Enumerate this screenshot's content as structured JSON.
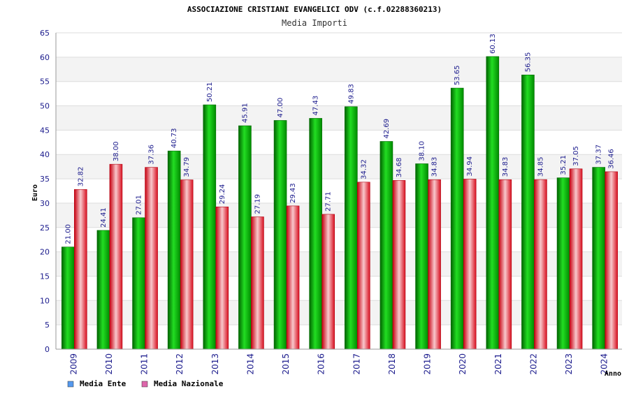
{
  "chart_data": {
    "type": "bar",
    "title": "ASSOCIAZIONE CRISTIANI EVANGELICI ODV (c.f.02288360213)",
    "subtitle": "Media Importi",
    "xlabel": "Anno",
    "ylabel": "Euro",
    "ylim": [
      0,
      65
    ],
    "ytick_step": 5,
    "grid": true,
    "legend_position": "bottom-left",
    "categories": [
      "2009",
      "2010",
      "2011",
      "2012",
      "2013",
      "2014",
      "2015",
      "2016",
      "2017",
      "2018",
      "2019",
      "2020",
      "2021",
      "2022",
      "2023",
      "2024"
    ],
    "series": [
      {
        "name": "Media Ente",
        "color": "#00b400",
        "legend_color": "#5599ee",
        "values": [
          21.0,
          24.41,
          27.01,
          40.73,
          50.21,
          45.91,
          47.0,
          47.43,
          49.83,
          42.69,
          38.1,
          53.65,
          60.13,
          56.35,
          35.21,
          37.37
        ],
        "labels": [
          "21.00",
          "24.41",
          "27.01",
          "40.73",
          "50.21",
          "45.91",
          "47.00",
          "47.43",
          "49.83",
          "42.69",
          "38.10",
          "53.65",
          "60.13",
          "56.35",
          "35.21",
          "37.37"
        ]
      },
      {
        "name": "Media Nazionale",
        "color": "#e8202a",
        "legend_color": "#dd66aa",
        "values": [
          32.82,
          38.0,
          37.36,
          34.79,
          29.24,
          27.19,
          29.43,
          27.71,
          34.32,
          34.68,
          34.83,
          34.94,
          34.83,
          34.85,
          37.05,
          36.46
        ],
        "labels": [
          "32.82",
          "38.00",
          "37.36",
          "34.79",
          "29.24",
          "27.19",
          "29.43",
          "27.71",
          "34.32",
          "34.68",
          "34.83",
          "34.94",
          "34.83",
          "34.85",
          "37.05",
          "36.46"
        ]
      }
    ]
  }
}
